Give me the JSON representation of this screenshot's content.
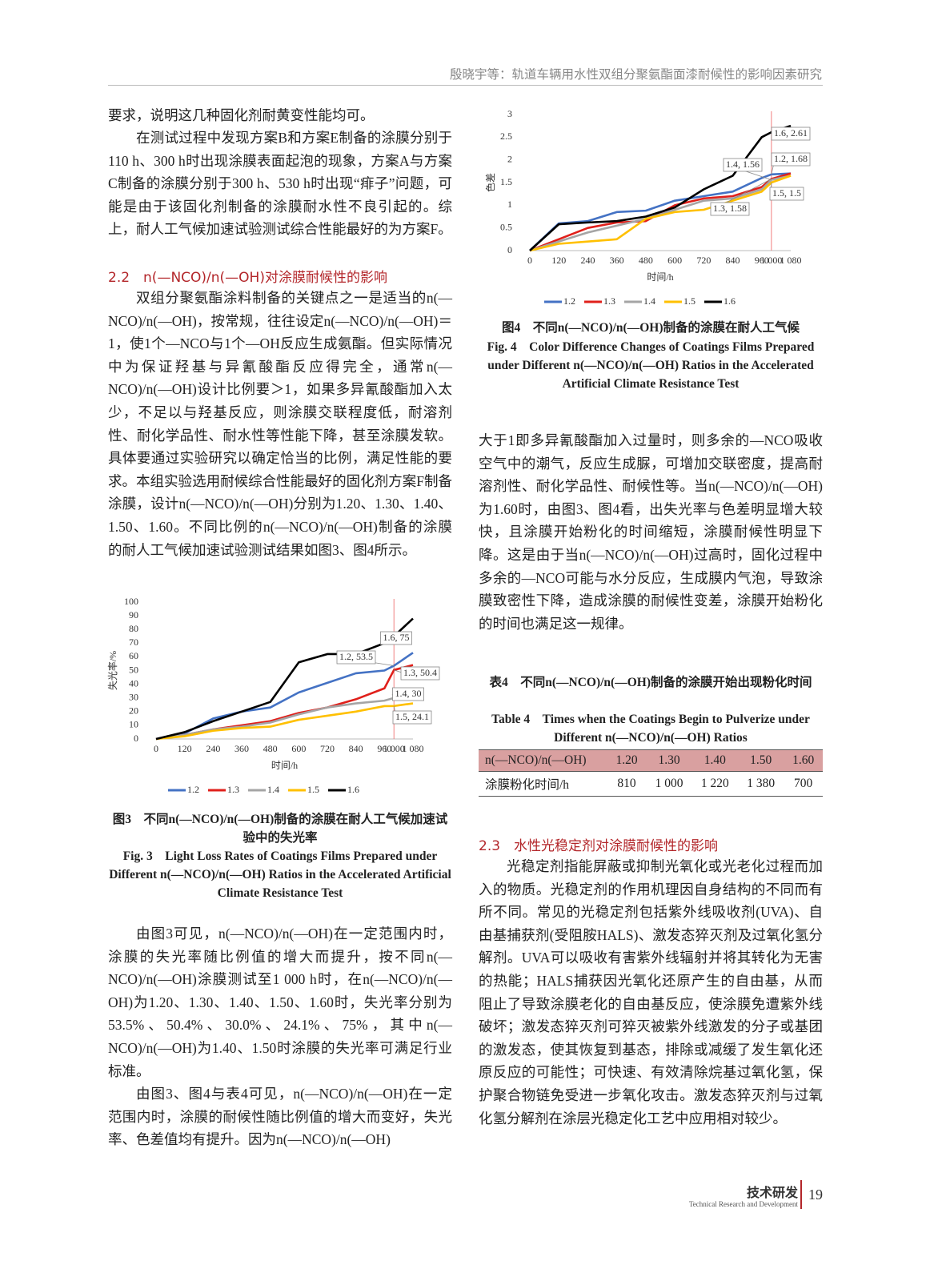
{
  "header": {
    "title": "殷晓宇等：轨道车辆用水性双组分聚氨酯面漆耐候性的影响因素研究"
  },
  "left": {
    "p0": "要求，说明这几种固化剂耐黄变性能均可。",
    "p1": "在测试过程中发现方案B和方案E制备的涂膜分别于110 h、300 h时出现涂膜表面起泡的现象，方案A与方案C制备的涂膜分别于300 h、530 h时出现“痱子”问题，可能是由于该固化剂制备的涂膜耐水性不良引起的。综上，耐人工气候加速试验测试综合性能最好的为方案F。",
    "h22": "2.2　n(—NCO)/n(—OH)对涂膜耐候性的影响",
    "p2": "双组分聚氨酯涂料制备的关键点之一是适当的n(—NCO)/n(—OH)，按常规，往往设定n(—NCO)/n(—OH)＝1，使1个—NCO与1个—OH反应生成氨酯。但实际情况中为保证羟基与异氰酸酯反应得完全，通常n(—NCO)/n(—OH)设计比例要＞1，如果多异氰酸酯加入太少，不足以与羟基反应，则涂膜交联程度低，耐溶剂性、耐化学品性、耐水性等性能下降，甚至涂膜发软。具体要通过实验研究以确定恰当的比例，满足性能的要求。本组实验选用耐候综合性能最好的固化剂方案F制备涂膜，设计n(—NCO)/n(—OH)分别为1.20、1.30、1.40、1.50、1.60。不同比例的n(—NCO)/n(—OH)制备的涂膜的耐人工气候加速试验测试结果如图3、图4所示。",
    "fig3_cn": "图3　不同n(—NCO)/n(—OH)制备的涂膜在耐人工气候加速试验中的失光率",
    "fig3_en": "Fig. 3　Light Loss Rates of Coatings Films Prepared under Different n(—NCO)/n(—OH) Ratios in the Accelerated Artificial Climate Resistance Test",
    "p3": "由图3可见，n(—NCO)/n(—OH)在一定范围内时，涂膜的失光率随比例值的增大而提升，按不同n(—NCO)/n(—OH)涂膜测试至1 000 h时，在n(—NCO)/n(—OH)为1.20、1.30、1.40、1.50、1.60时，失光率分别为53.5%、50.4%、30.0%、24.1%、75%，其中n(—NCO)/n(—OH)为1.40、1.50时涂膜的失光率可满足行业标准。",
    "p4": "由图3、图4与表4可见，n(—NCO)/n(—OH)在一定范围内时，涂膜的耐候性随比例值的增大而变好，失光率、色差值均有提升。因为n(—NCO)/n(—OH)"
  },
  "right": {
    "fig4_cn": "图4　不同n(—NCO)/n(—OH)制备的涂膜在耐人工气候",
    "fig4_en": "Fig. 4　Color Difference Changes of Coatings Films Prepared under Different n(—NCO)/n(—OH) Ratios in the Accelerated Artificial Climate Resistance Test",
    "p5": "大于1即多异氰酸酯加入过量时，则多余的—NCO吸收空气中的潮气，反应生成脲，可增加交联密度，提高耐溶剂性、耐化学品性、耐候性等。当n(—NCO)/n(—OH)为1.60时，由图3、图4看，出失光率与色差明显增大较快，且涂膜开始粉化的时间缩短，涂膜耐候性明显下降。这是由于当n(—NCO)/n(—OH)过高时，固化过程中多余的—NCO可能与水分反应，生成膜内气泡，导致涂膜致密性下降，造成涂膜的耐候性变差，涂膜开始粉化的时间也满足这一规律。",
    "tab4_cn": "表4　不同n(—NCO)/n(—OH)制备的涂膜开始出现粉化时间",
    "tab4_en": "Table 4　Times when the Coatings Begin to Pulverize under Different n(—NCO)/n(—OH) Ratios",
    "h23": "2.3　水性光稳定剂对涂膜耐候性的影响",
    "p6": "光稳定剂指能屏蔽或抑制光氧化或光老化过程而加入的物质。光稳定剂的作用机理因自身结构的不同而有所不同。常见的光稳定剂包括紫外线吸收剂(UVA)、自由基捕获剂(受阻胺HALS)、激发态猝灭剂及过氧化氢分解剂。UVA可以吸收有害紫外线辐射并将其转化为无害的热能；HALS捕获因光氧化还原产生的自由基，从而阻止了导致涂膜老化的自由基反应，使涂膜免遭紫外线破坏；激发态猝灭剂可猝灭被紫外线激发的分子或基团的激发态，使其恢复到基态，排除或减缓了发生氧化还原反应的可能性；可快速、有效清除烷基过氧化氢，保护聚合物链免受进一步氧化攻击。激发态猝灭剂与过氧化氢分解剂在涂层光稳定化工艺中应用相对较少。"
  },
  "table": {
    "rows": [
      [
        "n(—NCO)/n(—OH)",
        "1.20",
        "1.30",
        "1.40",
        "1.50",
        "1.60"
      ],
      [
        "涂膜粉化时间/h",
        "810",
        "1 000",
        "1 220",
        "1 380",
        "700"
      ]
    ]
  },
  "footer": {
    "section": "技术研发",
    "section_en": "Technical Research and Development",
    "page": "19"
  },
  "chart_data": [
    {
      "type": "line",
      "y_label": "失光率/%",
      "x_label": "时间/h",
      "x": [
        0,
        120,
        240,
        360,
        480,
        600,
        720,
        840,
        960,
        1000,
        1080
      ],
      "xticks": [
        0,
        120,
        240,
        360,
        480,
        600,
        720,
        840,
        960,
        {
          "value": 1000,
          "label": "1 000"
        },
        {
          "value": 1080,
          "label": "1 080"
        }
      ],
      "xlim": [
        0,
        1080
      ],
      "ylim": [
        0,
        100
      ],
      "yticks": [
        0,
        10,
        20,
        30,
        40,
        50,
        60,
        70,
        80,
        90,
        100
      ],
      "grid": false,
      "reference_x": 1000,
      "reference_color": "#f08080",
      "series": [
        {
          "name": "1.2",
          "color": "#4472c4",
          "values": [
            0,
            4,
            15,
            20,
            23,
            34,
            41,
            48,
            50,
            53.5,
            63
          ]
        },
        {
          "name": "1.3",
          "color": "#e0201b",
          "values": [
            0,
            3,
            7,
            10,
            13,
            19,
            23,
            29,
            37,
            50.4,
            54
          ]
        },
        {
          "name": "1.4",
          "color": "#a5a5a5",
          "values": [
            0,
            3,
            7,
            9,
            12,
            18,
            23,
            26,
            28,
            30,
            31
          ]
        },
        {
          "name": "1.5",
          "color": "#ffc000",
          "values": [
            0,
            2,
            6,
            8,
            9,
            14,
            17,
            20,
            24,
            24.1,
            26
          ]
        },
        {
          "name": "1.6",
          "color": "#000000",
          "values": [
            0,
            5,
            13,
            20,
            27,
            56,
            62,
            62,
            70,
            75,
            88
          ]
        }
      ],
      "annotations": [
        "1.6, 75",
        "1.2, 53.5",
        "1.3, 50.4",
        "1.4, 30",
        "1.5, 24.1"
      ]
    },
    {
      "type": "line",
      "y_label": "色差",
      "x_label": "时间/h",
      "x": [
        0,
        120,
        240,
        360,
        480,
        600,
        720,
        840,
        960,
        1000,
        1080
      ],
      "xticks": [
        0,
        120,
        240,
        360,
        480,
        600,
        720,
        840,
        960,
        {
          "value": 1000,
          "label": "1 000"
        },
        {
          "value": 1080,
          "label": "1 080"
        }
      ],
      "xlim": [
        0,
        1080
      ],
      "ylim": [
        0,
        3
      ],
      "yticks": [
        0,
        0.5,
        1,
        1.5,
        2,
        2.5,
        3
      ],
      "grid": false,
      "reference_x": 1000,
      "reference_color": "#f08080",
      "series": [
        {
          "name": "1.2",
          "color": "#4472c4",
          "values": [
            0,
            0.6,
            0.65,
            0.85,
            0.88,
            1.1,
            1.2,
            1.3,
            1.6,
            1.68,
            1.7
          ]
        },
        {
          "name": "1.3",
          "color": "#e0201b",
          "values": [
            0,
            0.25,
            0.5,
            0.62,
            0.65,
            1.0,
            1.15,
            1.2,
            1.4,
            1.58,
            1.7
          ]
        },
        {
          "name": "1.4",
          "color": "#a5a5a5",
          "values": [
            0,
            0.2,
            0.4,
            0.55,
            0.7,
            0.9,
            1.1,
            1.15,
            1.35,
            1.56,
            1.65
          ]
        },
        {
          "name": "1.5",
          "color": "#ffc000",
          "values": [
            0,
            0.15,
            0.2,
            0.25,
            0.7,
            0.85,
            0.9,
            1.1,
            1.3,
            1.5,
            1.65
          ]
        },
        {
          "name": "1.6",
          "color": "#000000",
          "values": [
            0,
            0.58,
            0.62,
            0.65,
            0.75,
            0.95,
            1.35,
            1.65,
            2.5,
            2.61,
            2.75
          ]
        }
      ],
      "annotations": [
        "1.6, 2.61",
        "1.2, 1.68",
        "1.4, 1.56",
        "1.5, 1.5",
        "1.3, 1.58"
      ]
    }
  ]
}
